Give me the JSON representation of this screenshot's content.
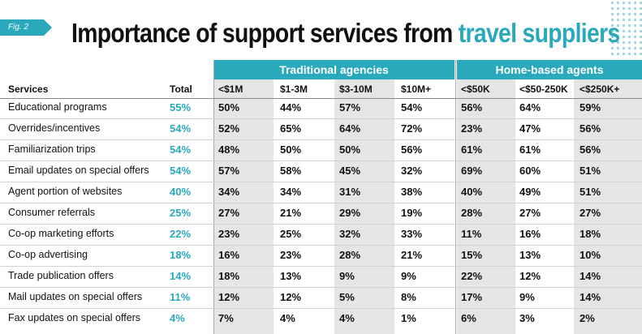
{
  "figure": {
    "tag": "Fig. 2",
    "title_main": "Importance of support services from ",
    "title_accent": "travel suppliers"
  },
  "groups": {
    "traditional": "Traditional agencies",
    "home": "Home-based agents"
  },
  "headers": {
    "services": "Services",
    "total": "Total",
    "columns": [
      "<$1M",
      "$1-3M",
      "$3-10M",
      "$10M+",
      "<$50K",
      "<$50-250K",
      "<$250K+"
    ]
  },
  "colors": {
    "accent": "#2aa9bd",
    "shade": "#e5e5e6"
  },
  "chart_data": {
    "type": "table",
    "title": "Importance of support services from travel suppliers",
    "column_groups": [
      {
        "name": "Traditional agencies",
        "columns": [
          "<$1M",
          "$1-3M",
          "$3-10M",
          "$10M+"
        ]
      },
      {
        "name": "Home-based agents",
        "columns": [
          "<$50K",
          "<$50-250K",
          "<$250K+"
        ]
      }
    ],
    "rows": [
      {
        "service": "Educational programs",
        "total": "55%",
        "values": [
          "50%",
          "44%",
          "57%",
          "54%",
          "56%",
          "64%",
          "59%"
        ]
      },
      {
        "service": "Overrides/incentives",
        "total": "54%",
        "values": [
          "52%",
          "65%",
          "64%",
          "72%",
          "23%",
          "47%",
          "56%"
        ]
      },
      {
        "service": "Familiarization trips",
        "total": "54%",
        "values": [
          "48%",
          "50%",
          "50%",
          "56%",
          "61%",
          "61%",
          "56%"
        ]
      },
      {
        "service": "Email updates on special offers",
        "total": "54%",
        "values": [
          "57%",
          "58%",
          "45%",
          "32%",
          "69%",
          "60%",
          "51%"
        ]
      },
      {
        "service": "Agent portion of websites",
        "total": "40%",
        "values": [
          "34%",
          "34%",
          "31%",
          "38%",
          "40%",
          "49%",
          "51%"
        ]
      },
      {
        "service": "Consumer referrals",
        "total": "25%",
        "values": [
          "27%",
          "21%",
          "29%",
          "19%",
          "28%",
          "27%",
          "27%"
        ]
      },
      {
        "service": "Co-op marketing efforts",
        "total": "22%",
        "values": [
          "23%",
          "25%",
          "32%",
          "33%",
          "11%",
          "16%",
          "18%"
        ]
      },
      {
        "service": "Co-op advertising",
        "total": "18%",
        "values": [
          "16%",
          "23%",
          "28%",
          "21%",
          "15%",
          "13%",
          "10%"
        ]
      },
      {
        "service": "Trade publication offers",
        "total": "14%",
        "values": [
          "18%",
          "13%",
          "9%",
          "9%",
          "22%",
          "12%",
          "14%"
        ]
      },
      {
        "service": "Mail updates on special offers",
        "total": "11%",
        "values": [
          "12%",
          "12%",
          "5%",
          "8%",
          "17%",
          "9%",
          "14%"
        ]
      },
      {
        "service": "Fax updates on special offers",
        "total": "4%",
        "values": [
          "7%",
          "4%",
          "4%",
          "1%",
          "6%",
          "3%",
          "2%"
        ]
      }
    ]
  }
}
